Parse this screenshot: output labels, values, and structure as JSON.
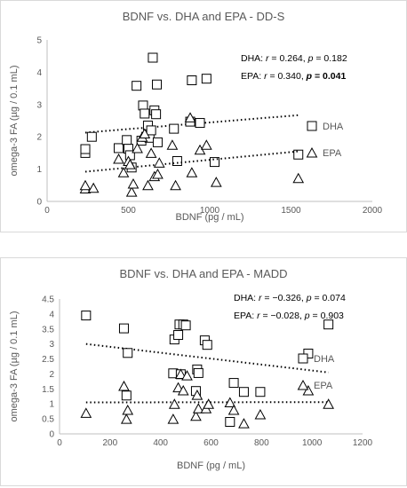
{
  "chart_data": [
    {
      "type": "scatter",
      "title": "BDNF vs. DHA and EPA - DD-S",
      "xlabel": "BDNF (pg / mL)",
      "ylabel": "omega-3 FA (µg / 0.1 mL)",
      "xlim": [
        0,
        2000
      ],
      "ylim": [
        0,
        5
      ],
      "x_ticks": [
        "0",
        "500",
        "1000",
        "1500",
        "2000"
      ],
      "y_ticks": [
        "0",
        "1",
        "2",
        "3",
        "4",
        "5"
      ],
      "legend": {
        "position": "right",
        "entries": [
          "DHA",
          "EPA"
        ]
      },
      "annotations": [
        {
          "label": "DHA:",
          "r": "0.264",
          "p": "0.182",
          "bold_p": false
        },
        {
          "label": "EPA:",
          "r": "0.340",
          "p": "0.041",
          "bold_p": true
        }
      ],
      "series": [
        {
          "name": "DHA",
          "marker": "square",
          "points": [
            [
              235,
              1.5
            ],
            [
              235,
              1.62
            ],
            [
              275,
              2.0
            ],
            [
              440,
              1.65
            ],
            [
              490,
              1.9
            ],
            [
              500,
              1.63
            ],
            [
              510,
              1.43
            ],
            [
              520,
              1.05
            ],
            [
              550,
              3.58
            ],
            [
              580,
              1.88
            ],
            [
              590,
              2.97
            ],
            [
              600,
              2.72
            ],
            [
              610,
              2.0
            ],
            [
              620,
              2.35
            ],
            [
              630,
              1.97
            ],
            [
              640,
              2.2
            ],
            [
              650,
              4.45
            ],
            [
              660,
              2.82
            ],
            [
              670,
              2.7
            ],
            [
              675,
              3.62
            ],
            [
              680,
              1.83
            ],
            [
              780,
              2.25
            ],
            [
              800,
              1.25
            ],
            [
              880,
              2.47
            ],
            [
              890,
              3.75
            ],
            [
              940,
              2.43
            ],
            [
              980,
              3.8
            ],
            [
              1030,
              1.22
            ],
            [
              1545,
              1.45
            ]
          ],
          "trend": [
            [
              235,
              2.13
            ],
            [
              1545,
              2.67
            ]
          ]
        },
        {
          "name": "EPA",
          "marker": "triangle",
          "points": [
            [
              235,
              0.4
            ],
            [
              235,
              0.5
            ],
            [
              285,
              0.42
            ],
            [
              440,
              1.32
            ],
            [
              470,
              0.9
            ],
            [
              500,
              1.25
            ],
            [
              510,
              1.15
            ],
            [
              520,
              0.3
            ],
            [
              530,
              0.55
            ],
            [
              555,
              1.65
            ],
            [
              585,
              2.0
            ],
            [
              600,
              2.1
            ],
            [
              620,
              0.5
            ],
            [
              640,
              1.5
            ],
            [
              660,
              0.78
            ],
            [
              680,
              0.85
            ],
            [
              690,
              1.2
            ],
            [
              770,
              1.75
            ],
            [
              790,
              0.5
            ],
            [
              880,
              2.6
            ],
            [
              890,
              0.9
            ],
            [
              940,
              1.6
            ],
            [
              980,
              1.75
            ],
            [
              1040,
              0.6
            ],
            [
              1545,
              0.72
            ]
          ],
          "trend": [
            [
              235,
              0.92
            ],
            [
              1545,
              1.55
            ]
          ]
        }
      ]
    },
    {
      "type": "scatter",
      "title": "BDNF vs. DHA and EPA - MADD",
      "xlabel": "BDNF (pg / mL)",
      "ylabel": "omega-3 FA (µg / 0.1 mL)",
      "xlim": [
        0,
        1200
      ],
      "ylim": [
        0,
        4.5
      ],
      "x_ticks": [
        "0",
        "200",
        "400",
        "600",
        "800",
        "1000",
        "1200"
      ],
      "y_ticks": [
        "0",
        "0.5",
        "1",
        "1.5",
        "2",
        "2.5",
        "3",
        "3.5",
        "4",
        "4.5"
      ],
      "legend": {
        "position": "right",
        "entries": [
          "DHA",
          "EPA"
        ]
      },
      "annotations": [
        {
          "label": "DHA:",
          "r": "−0.326",
          "p": "0.074",
          "bold_p": false
        },
        {
          "label": "EPA:",
          "r": "−0.028",
          "p": "0.903",
          "bold_p": false
        }
      ],
      "series": [
        {
          "name": "DHA",
          "marker": "square",
          "points": [
            [
              105,
              3.95
            ],
            [
              255,
              3.52
            ],
            [
              265,
              1.28
            ],
            [
              270,
              2.7
            ],
            [
              450,
              2.02
            ],
            [
              455,
              3.15
            ],
            [
              470,
              3.3
            ],
            [
              475,
              3.65
            ],
            [
              480,
              1.99
            ],
            [
              490,
              3.65
            ],
            [
              500,
              3.62
            ],
            [
              540,
              1.43
            ],
            [
              545,
              2.15
            ],
            [
              550,
              2.03
            ],
            [
              575,
              3.12
            ],
            [
              585,
              2.97
            ],
            [
              675,
              0.4
            ],
            [
              690,
              1.7
            ],
            [
              730,
              1.4
            ],
            [
              795,
              1.4
            ],
            [
              985,
              2.68
            ],
            [
              1065,
              3.65
            ]
          ],
          "trend": [
            [
              105,
              3.0
            ],
            [
              1065,
              2.05
            ]
          ]
        },
        {
          "name": "EPA",
          "marker": "triangle",
          "points": [
            [
              105,
              0.7
            ],
            [
              255,
              1.6
            ],
            [
              265,
              0.5
            ],
            [
              270,
              0.8
            ],
            [
              450,
              0.5
            ],
            [
              455,
              1.0
            ],
            [
              470,
              1.55
            ],
            [
              480,
              2.0
            ],
            [
              490,
              1.45
            ],
            [
              505,
              1.95
            ],
            [
              540,
              0.6
            ],
            [
              545,
              1.3
            ],
            [
              550,
              0.85
            ],
            [
              580,
              0.85
            ],
            [
              590,
              1.0
            ],
            [
              675,
              1.05
            ],
            [
              690,
              0.8
            ],
            [
              730,
              0.35
            ],
            [
              795,
              0.65
            ],
            [
              985,
              1.45
            ],
            [
              1065,
              1.0
            ]
          ],
          "trend": [
            [
              105,
              1.05
            ],
            [
              1065,
              1.06
            ]
          ]
        }
      ]
    }
  ]
}
